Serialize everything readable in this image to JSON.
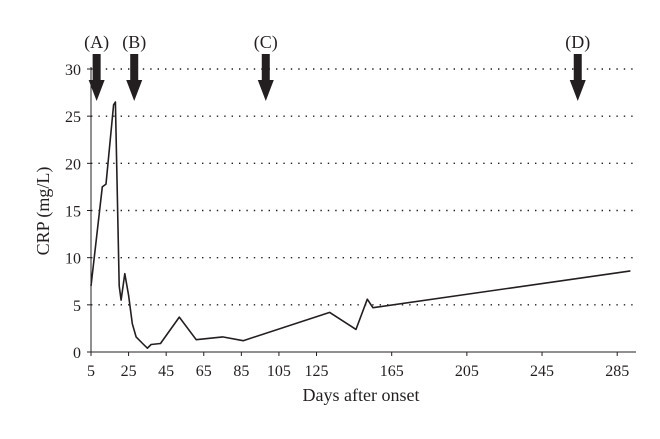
{
  "colors": {
    "ink": "#231f20",
    "background": "#ffffff"
  },
  "chart_data": {
    "type": "line",
    "title": "",
    "xlabel": "Days after onset",
    "ylabel": "CRP (mg/L)",
    "xlim": [
      5,
      295
    ],
    "ylim": [
      0,
      30
    ],
    "x_ticks": [
      5,
      25,
      45,
      65,
      85,
      105,
      125,
      165,
      205,
      245,
      285
    ],
    "y_ticks": [
      0,
      5,
      10,
      15,
      20,
      25,
      30
    ],
    "grid": "horizontal dotted",
    "series": [
      {
        "values": [
          [
            5,
            7
          ],
          [
            11,
            17.5
          ],
          [
            13,
            17.8
          ],
          [
            17,
            26.2
          ],
          [
            18,
            26.5
          ],
          [
            20,
            7
          ],
          [
            21,
            5.5
          ],
          [
            23,
            8.3
          ],
          [
            25,
            6
          ],
          [
            27,
            3
          ],
          [
            29,
            1.6
          ],
          [
            33,
            0.8
          ],
          [
            35,
            0.4
          ],
          [
            37,
            0.8
          ],
          [
            42,
            0.9
          ],
          [
            52,
            3.7
          ],
          [
            61,
            1.3
          ],
          [
            75,
            1.6
          ],
          [
            86,
            1.2
          ],
          [
            132,
            4.2
          ],
          [
            146,
            2.4
          ],
          [
            152,
            5.6
          ],
          [
            155,
            4.7
          ],
          [
            292,
            8.6
          ]
        ]
      }
    ],
    "annotations": [
      {
        "label": "(A)",
        "x": 8
      },
      {
        "label": "(B)",
        "x": 28
      },
      {
        "label": "(C)",
        "x": 98
      },
      {
        "label": "(D)",
        "x": 264
      }
    ]
  }
}
